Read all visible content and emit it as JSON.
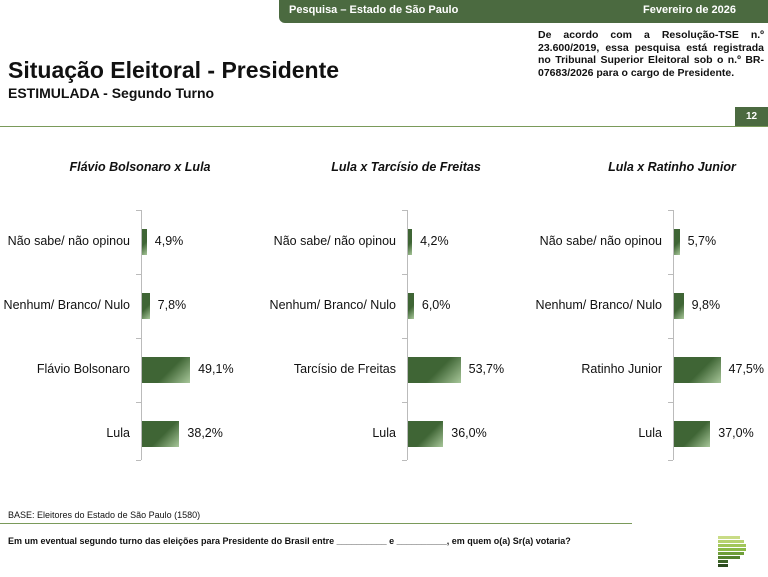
{
  "header": {
    "survey": "Pesquisa – Estado de São Paulo",
    "date": "Fevereiro de 2026"
  },
  "title": "Situação Eleitoral - Presidente",
  "subtitle": "ESTIMULADA - Segundo Turno",
  "registration_note": "De acordo com a Resolução-TSE n.º 23.600/2019, essa pesquisa está registrada no Tribunal Superior Eleitoral sob o n.º BR-07683/2026 para o cargo de Presidente.",
  "page_number": "12",
  "base": "BASE: Eleitores do Estado de São Paulo (1580)",
  "question": "Em um eventual segundo turno das eleições para Presidente do Brasil entre __________ e __________, em quem o(a) Sr(a) votaria?",
  "chart_data": [
    {
      "type": "bar",
      "title": "Flávio Bolsonaro x Lula",
      "categories": [
        "Não sabe/ não opinou",
        "Nenhum/ Branco/ Nulo",
        "Flávio Bolsonaro",
        "Lula"
      ],
      "values": [
        4.9,
        7.8,
        49.1,
        38.2
      ],
      "labels": [
        "4,9%",
        "7,8%",
        "49,1%",
        "38,2%"
      ],
      "orientation": "horizontal",
      "unit": "%"
    },
    {
      "type": "bar",
      "title": "Lula x Tarcísio de Freitas",
      "categories": [
        "Não sabe/ não opinou",
        "Nenhum/ Branco/ Nulo",
        "Tarcísio de Freitas",
        "Lula"
      ],
      "values": [
        4.2,
        6.0,
        53.7,
        36.0
      ],
      "labels": [
        "4,2%",
        "6,0%",
        "53,7%",
        "36,0%"
      ],
      "orientation": "horizontal",
      "unit": "%"
    },
    {
      "type": "bar",
      "title": "Lula x Ratinho Junior",
      "categories": [
        "Não sabe/ não opinou",
        "Nenhum/ Branco/ Nulo",
        "Ratinho Junior",
        "Lula"
      ],
      "values": [
        5.7,
        9.8,
        47.5,
        37.0
      ],
      "labels": [
        "5,7%",
        "9,8%",
        "47,5%",
        "37,0%"
      ],
      "orientation": "horizontal",
      "unit": "%"
    }
  ],
  "colors": {
    "brand": "#4b6a40"
  }
}
